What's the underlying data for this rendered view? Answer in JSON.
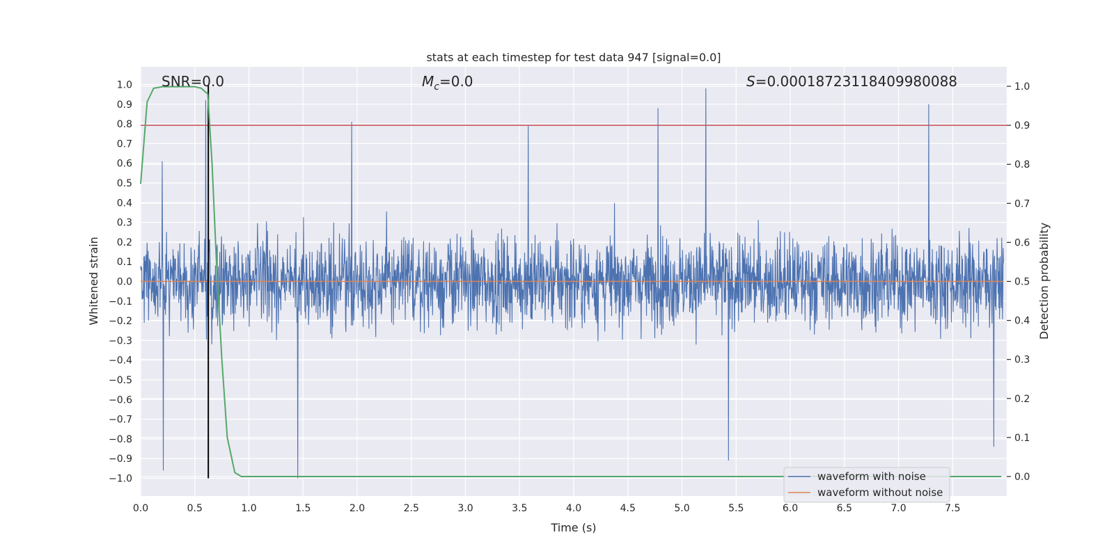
{
  "chart_data": {
    "type": "line",
    "title": "stats at each timestep for test data 947 [signal=0.0]",
    "xlabel": "Time (s)",
    "ylabel_left": "Whitened strain",
    "ylabel_right": "Detection probability",
    "xlim": [
      0.0,
      8.0
    ],
    "ylim_left": [
      -1.09,
      1.09
    ],
    "ylim_right": [
      -0.05,
      1.05
    ],
    "x_ticks": [
      "0.0",
      "0.5",
      "1.0",
      "1.5",
      "2.0",
      "2.5",
      "3.0",
      "3.5",
      "4.0",
      "4.5",
      "5.0",
      "5.5",
      "6.0",
      "6.5",
      "7.0",
      "7.5"
    ],
    "y_ticks_left": [
      "1.0",
      "0.9",
      "0.8",
      "0.7",
      "0.6",
      "0.5",
      "0.4",
      "0.3",
      "0.2",
      "0.1",
      "0.0",
      "−0.1",
      "−0.2",
      "−0.3",
      "−0.4",
      "−0.5",
      "−0.6",
      "−0.7",
      "−0.8",
      "−0.9",
      "−1.0"
    ],
    "y_ticks_right": [
      "1.0",
      "0.9",
      "0.8",
      "0.7",
      "0.6",
      "0.5",
      "0.4",
      "0.3",
      "0.2",
      "0.1",
      "0.0"
    ],
    "annotations": {
      "snr": "SNR=0.0",
      "mc_symbol": "M",
      "mc_subscript": "c",
      "mc_value": "=0.0",
      "s_symbol": "S",
      "s_value": "=0.00018723118409980088"
    },
    "grid": true,
    "legend_position": "lower right",
    "series": [
      {
        "name": "waveform with noise",
        "color": "#4c72b0",
        "axis": "left",
        "envelope_note": "dense noise, typical amplitude about 0.4, peaks near 0.98 at t≈5.22 and -1.0 at t≈1.45",
        "peaks": [
          {
            "x": 0.2,
            "y": 0.61
          },
          {
            "x": 0.21,
            "y": -0.96
          },
          {
            "x": 0.6,
            "y": 0.92
          },
          {
            "x": 1.45,
            "y": -1.0
          },
          {
            "x": 1.95,
            "y": 0.81
          },
          {
            "x": 3.58,
            "y": 0.79
          },
          {
            "x": 4.78,
            "y": 0.88
          },
          {
            "x": 5.22,
            "y": 0.98
          },
          {
            "x": 5.43,
            "y": -0.91
          },
          {
            "x": 7.28,
            "y": 0.9
          },
          {
            "x": 7.88,
            "y": -0.84
          }
        ]
      },
      {
        "name": "waveform without noise",
        "color": "#dd8452",
        "axis": "left",
        "x": [
          0.0,
          8.0
        ],
        "y": [
          0.0,
          0.0
        ]
      },
      {
        "name": "",
        "color": "#55a868",
        "axis": "right",
        "x": [
          0.0,
          0.06,
          0.12,
          0.2,
          0.3,
          0.4,
          0.5,
          0.56,
          0.62,
          0.66,
          0.7,
          0.75,
          0.8,
          0.87,
          0.93,
          1.0,
          2.0,
          3.0,
          4.0,
          5.0,
          6.0,
          7.0,
          7.95
        ],
        "y": [
          0.75,
          0.96,
          0.995,
          0.999,
          0.999,
          0.999,
          0.999,
          0.995,
          0.98,
          0.8,
          0.55,
          0.3,
          0.1,
          0.01,
          0.0,
          0.0,
          0.0,
          0.0,
          0.0,
          0.0,
          0.0,
          0.0,
          0.0
        ]
      },
      {
        "name": "",
        "color": "#c44e52",
        "axis": "right",
        "type": "hline",
        "y": 0.9
      },
      {
        "name": "",
        "color": "#000000",
        "axis": "left",
        "type": "vline",
        "x": 0.625,
        "ylim": [
          -1.0,
          1.0
        ]
      }
    ]
  }
}
